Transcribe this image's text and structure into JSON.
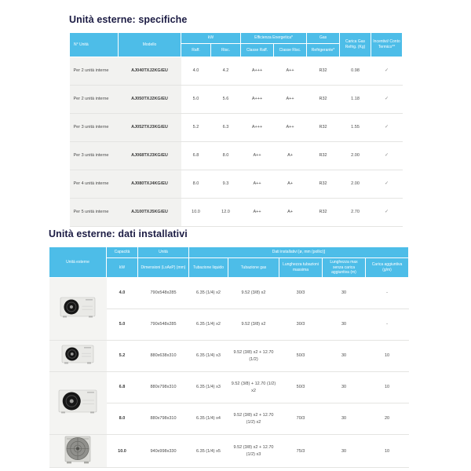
{
  "colors": {
    "header_blue": "#4dbde8",
    "title_navy": "#1c1c44",
    "row_alt_gray": "#f2f2f0",
    "text_gray": "#4a4a4a"
  },
  "icons": {
    "check": "✓",
    "outdoor_unit_photo": "outdoor-unit-photo"
  },
  "section_spec": {
    "title": "Unità esterne: specifiche",
    "table": {
      "header": {
        "col_unita": "N° Unità",
        "col_modello": "Modello",
        "group_kw": "kW",
        "sub_raff": "Raff.",
        "sub_risc": "Risc.",
        "group_eff": "Efficienza Energetica*",
        "sub_classe_raff": "Classe Raff.",
        "sub_classe_risc": "Classe Risc.",
        "group_gas": "Gas",
        "sub_refrigerante": "Refrigerante*",
        "col_carica": "Carica Gas Refrig. (Kg)",
        "col_incentivi": "Incentivi/ Conto Termico**"
      },
      "rows": [
        {
          "unita": "Per 2 unità interne",
          "modello": "AJ040TXJ2KG/EU",
          "raff": "4.0",
          "risc": "4.2",
          "classe_raff": "A+++",
          "classe_risc": "A++",
          "gas": "R32",
          "carica": "0.98",
          "incentivi": "✓"
        },
        {
          "unita": "Per 2 unità interne",
          "modello": "AJ050TXJ2KG/EU",
          "raff": "5.0",
          "risc": "5.6",
          "classe_raff": "A+++",
          "classe_risc": "A++",
          "gas": "R32",
          "carica": "1.18",
          "incentivi": "✓"
        },
        {
          "unita": "Per 3 unità interne",
          "modello": "AJ052TXJ3KG/EU",
          "raff": "5.2",
          "risc": "6.3",
          "classe_raff": "A+++",
          "classe_risc": "A++",
          "gas": "R32",
          "carica": "1.55",
          "incentivi": "✓"
        },
        {
          "unita": "Per 3 unità interne",
          "modello": "AJ068TXJ3KG/EU",
          "raff": "6.8",
          "risc": "8.0",
          "classe_raff": "A++",
          "classe_risc": "A+",
          "gas": "R32",
          "carica": "2.00",
          "incentivi": "✓"
        },
        {
          "unita": "Per 4 unità interne",
          "modello": "AJ080TXJ4KG/EU",
          "raff": "8.0",
          "risc": "9.3",
          "classe_raff": "A++",
          "classe_risc": "A+",
          "gas": "R32",
          "carica": "2.00",
          "incentivi": "✓"
        },
        {
          "unita": "Per 5 unità interne",
          "modello": "AJ100TXJ5KG/EU",
          "raff": "10.0",
          "risc": "12.0",
          "classe_raff": "A++",
          "classe_risc": "A+",
          "gas": "R32",
          "carica": "2.70",
          "incentivi": "✓"
        }
      ]
    }
  },
  "section_install": {
    "title": "Unità esterne: dati installativi",
    "table": {
      "header": {
        "col_unita": "Unità esterne",
        "group_capacita": "Capacità",
        "sub_kw": "kW",
        "group_unita": "Unità",
        "sub_dim": "Dimensioni (LxAxP) (mm)",
        "group_dati": "Dati installativi [ø, mm (pollici)]",
        "sub_liquido": "Tubazione liquido",
        "sub_gas": "Tubazione gas",
        "sub_lunghezza": "Lunghezza tubazioni massima",
        "sub_lunghezza_max": "Lunghezza max senza carica aggiuntiva (m)",
        "sub_carica": "Carica aggiuntiva (g/m)"
      },
      "rows": [
        {
          "kw": "4.0",
          "dim": "790x548x285",
          "liquido": "6.35 (1/4) x2",
          "gas": "9.52 (3/8) x2",
          "lunghezza": "30/3",
          "max_senza": "30",
          "carica": "-"
        },
        {
          "kw": "5.0",
          "dim": "790x548x285",
          "liquido": "6.35 (1/4) x2",
          "gas": "9.52 (3/8) x2",
          "lunghezza": "30/3",
          "max_senza": "30",
          "carica": "-"
        },
        {
          "kw": "5.2",
          "dim": "880x638x310",
          "liquido": "6.35 (1/4) x3",
          "gas": "9.52 (3/8) x2 + 12.70 (1/2)",
          "lunghezza": "50/3",
          "max_senza": "30",
          "carica": "10"
        },
        {
          "kw": "6.8",
          "dim": "880x798x310",
          "liquido": "6.35 (1/4) x3",
          "gas": "9.52 (3/8) + 12.70 (1/2) x2",
          "lunghezza": "50/3",
          "max_senza": "30",
          "carica": "10"
        },
        {
          "kw": "8.0",
          "dim": "880x798x310",
          "liquido": "6.35 (1/4) x4",
          "gas": "9.52 (3/8) x2 + 12.70 (1/2) x2",
          "lunghezza": "70/3",
          "max_senza": "30",
          "carica": "20"
        },
        {
          "kw": "10.0",
          "dim": "940x998x330",
          "liquido": "6.35 (1/4) x5",
          "gas": "9.52 (3/8) x2 + 12.70 (1/2) x3",
          "lunghezza": "75/3",
          "max_senza": "30",
          "carica": "10"
        }
      ]
    }
  }
}
